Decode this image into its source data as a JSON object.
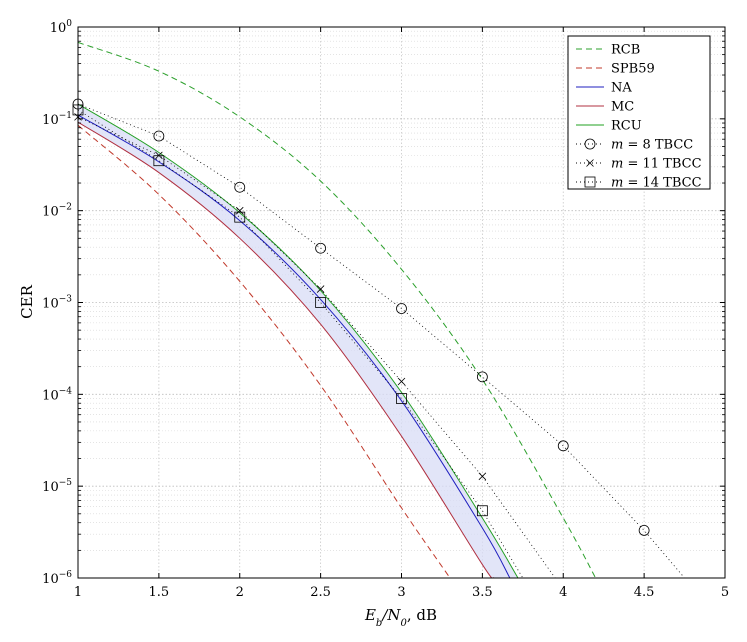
{
  "chart_data": {
    "type": "line",
    "title": "",
    "xlabel": "E_b/N_0, dB",
    "ylabel": "CER",
    "xlim": [
      1,
      5
    ],
    "ylim": [
      1e-06,
      1
    ],
    "yscale": "log",
    "grid": "major and minor",
    "legend_position": "top-right",
    "x_ticks": [
      "1",
      "1.5",
      "2",
      "2.5",
      "3",
      "3.5",
      "4",
      "4.5",
      "5"
    ],
    "x_tick_values": [
      1,
      1.5,
      2,
      2.5,
      3,
      3.5,
      4,
      4.5,
      5
    ],
    "y_ticks": [
      {
        "base": "10",
        "exp": "0",
        "value": 1
      },
      {
        "base": "10",
        "exp": "−1",
        "value": 0.1
      },
      {
        "base": "10",
        "exp": "−2",
        "value": 0.01
      },
      {
        "base": "10",
        "exp": "−3",
        "value": 0.001
      },
      {
        "base": "10",
        "exp": "−4",
        "value": 0.0001
      },
      {
        "base": "10",
        "exp": "−5",
        "value": 1e-05
      },
      {
        "base": "10",
        "exp": "−6",
        "value": 1e-06
      }
    ],
    "band": {
      "upper": "RCU",
      "lower": "MC",
      "color": "#d8dcf5"
    },
    "series": [
      {
        "name": "RCB",
        "color": "#2ca02c",
        "dash": "dashed",
        "marker": "none",
        "x": [
          1,
          1.5,
          2,
          2.5,
          3,
          3.5,
          4,
          4.2
        ],
        "y": [
          0.68,
          0.33,
          0.105,
          0.021,
          0.0023,
          0.000145,
          4.5e-06,
          1e-06
        ]
      },
      {
        "name": "SPB59",
        "color": "#c0392b",
        "dash": "dashed",
        "marker": "none",
        "x": [
          1,
          1.5,
          2,
          2.5,
          3,
          3.3
        ],
        "y": [
          0.085,
          0.015,
          0.0017,
          0.000125,
          5.8e-06,
          1e-06
        ]
      },
      {
        "name": "NA",
        "color": "#1f1fbf",
        "dash": "solid",
        "marker": "none",
        "x": [
          1,
          1.5,
          2,
          2.5,
          3,
          3.5,
          3.67
        ],
        "y": [
          0.11,
          0.034,
          0.0078,
          0.00108,
          8.5e-05,
          3.5e-06,
          1e-06
        ]
      },
      {
        "name": "MC",
        "color": "#b03040",
        "dash": "solid",
        "marker": "none",
        "x": [
          1,
          1.5,
          2,
          2.5,
          3,
          3.5,
          3.57
        ],
        "y": [
          0.092,
          0.026,
          0.005,
          0.00058,
          3.5e-05,
          1.4e-06,
          1e-06
        ]
      },
      {
        "name": "RCU",
        "color": "#22a022",
        "dash": "solid",
        "marker": "none",
        "x": [
          1,
          1.5,
          2,
          2.5,
          3,
          3.5,
          3.72
        ],
        "y": [
          0.145,
          0.043,
          0.0095,
          0.00135,
          0.000105,
          4.5e-06,
          1e-06
        ]
      },
      {
        "name": "m = 8 TBCC",
        "color": "#000000",
        "dash": "dotted",
        "marker": "circle",
        "x": [
          1,
          1.5,
          2,
          2.5,
          3,
          3.5,
          4,
          4.5,
          4.75
        ],
        "y": [
          0.145,
          0.065,
          0.018,
          0.0039,
          0.00086,
          0.000155,
          2.75e-05,
          3.3e-06,
          1e-06
        ]
      },
      {
        "name": "m = 11 TBCC",
        "color": "#000000",
        "dash": "dotted",
        "marker": "cross",
        "x": [
          1,
          1.5,
          2,
          2.5,
          3,
          3.5,
          3.95
        ],
        "y": [
          0.105,
          0.04,
          0.01,
          0.0014,
          0.000138,
          1.28e-05,
          1e-06
        ]
      },
      {
        "name": "m = 14 TBCC",
        "color": "#000000",
        "dash": "dotted",
        "marker": "square",
        "x": [
          1,
          1.5,
          2,
          2.5,
          3,
          3.5,
          3.75
        ],
        "y": [
          0.125,
          0.035,
          0.0085,
          0.001,
          9e-05,
          5.4e-06,
          1e-06
        ]
      }
    ]
  }
}
